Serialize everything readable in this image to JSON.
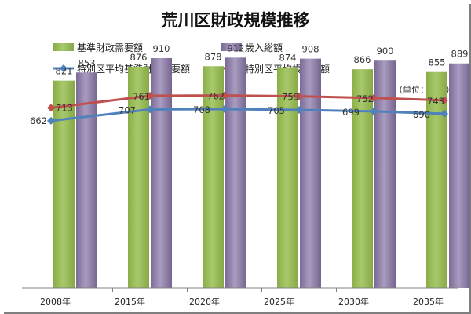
{
  "chart_data": {
    "type": "bar",
    "title": "荒川区財政規模推移",
    "unit_label": "（単位：億円）",
    "categories": [
      "2008年",
      "2015年",
      "2020年",
      "2025年",
      "2030年",
      "2035年"
    ],
    "ylim": [
      0,
      1000
    ],
    "grid": false,
    "legend_position": "top",
    "series": [
      {
        "name": "基準財政需要額",
        "kind": "bar",
        "color": "#9bbb59",
        "values": [
          821,
          876,
          878,
          874,
          866,
          855
        ]
      },
      {
        "name": "歳入総額",
        "kind": "bar",
        "color": "#8064a2",
        "values": [
          853,
          910,
          912,
          908,
          900,
          889
        ]
      },
      {
        "name": "特別区平均基準財政需要額",
        "kind": "line",
        "color": "#4f81bd",
        "marker": "diamond",
        "values": [
          662,
          707,
          708,
          705,
          699,
          690
        ]
      },
      {
        "name": "特別区平均歳入総額",
        "kind": "line",
        "color": "#c0504d",
        "marker": "diamond",
        "values": [
          713,
          761,
          762,
          759,
          752,
          743
        ]
      }
    ]
  }
}
